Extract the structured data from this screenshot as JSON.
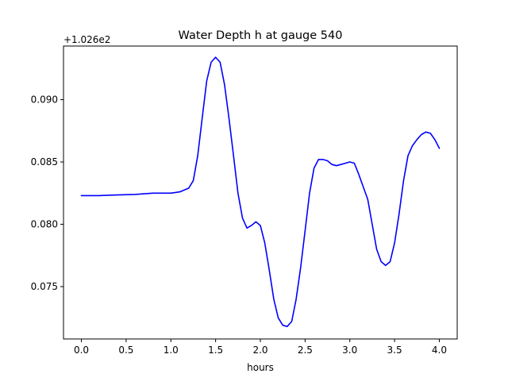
{
  "chart_data": {
    "type": "line",
    "title": "Water Depth h at gauge 540",
    "xlabel": "hours",
    "ylabel": "",
    "offset_label": "+1.026e2",
    "xlim": [
      -0.2,
      4.2
    ],
    "ylim": [
      0.0708,
      0.0943
    ],
    "xticks": [
      0.0,
      0.5,
      1.0,
      1.5,
      2.0,
      2.5,
      3.0,
      3.5,
      4.0
    ],
    "xtick_labels": [
      "0.0",
      "0.5",
      "1.0",
      "1.5",
      "2.0",
      "2.5",
      "3.0",
      "3.5",
      "4.0"
    ],
    "yticks": [
      0.075,
      0.08,
      0.085,
      0.09
    ],
    "ytick_labels": [
      "0.075",
      "0.080",
      "0.085",
      "0.090"
    ],
    "grid": false,
    "line_color": "#0000ff",
    "series": [
      {
        "x": [
          0.0,
          0.2,
          0.4,
          0.6,
          0.8,
          0.9,
          1.0,
          1.1,
          1.2,
          1.25,
          1.3,
          1.35,
          1.4,
          1.45,
          1.5,
          1.55,
          1.6,
          1.65,
          1.7,
          1.75,
          1.8,
          1.85,
          1.9,
          1.95,
          2.0,
          2.05,
          2.1,
          2.15,
          2.2,
          2.25,
          2.3,
          2.35,
          2.4,
          2.45,
          2.5,
          2.55,
          2.6,
          2.65,
          2.7,
          2.75,
          2.8,
          2.85,
          2.9,
          2.95,
          3.0,
          3.05,
          3.1,
          3.15,
          3.2,
          3.25,
          3.3,
          3.35,
          3.4,
          3.45,
          3.5,
          3.55,
          3.6,
          3.65,
          3.7,
          3.75,
          3.8,
          3.85,
          3.9,
          3.95,
          4.0
        ],
        "y": [
          0.0823,
          0.0823,
          0.08235,
          0.0824,
          0.0825,
          0.0825,
          0.0825,
          0.0826,
          0.0829,
          0.0835,
          0.0855,
          0.0885,
          0.0915,
          0.093,
          0.0934,
          0.093,
          0.0912,
          0.0885,
          0.0855,
          0.0825,
          0.0805,
          0.0797,
          0.0799,
          0.0802,
          0.0799,
          0.0785,
          0.0763,
          0.074,
          0.0725,
          0.0719,
          0.0718,
          0.0722,
          0.074,
          0.0765,
          0.0795,
          0.0825,
          0.0845,
          0.0852,
          0.0852,
          0.0851,
          0.0848,
          0.0847,
          0.0848,
          0.0849,
          0.085,
          0.0849,
          0.084,
          0.083,
          0.082,
          0.08,
          0.078,
          0.077,
          0.0767,
          0.077,
          0.0785,
          0.0808,
          0.0835,
          0.0855,
          0.0863,
          0.0868,
          0.0872,
          0.0874,
          0.0873,
          0.0868,
          0.0861
        ]
      }
    ]
  }
}
